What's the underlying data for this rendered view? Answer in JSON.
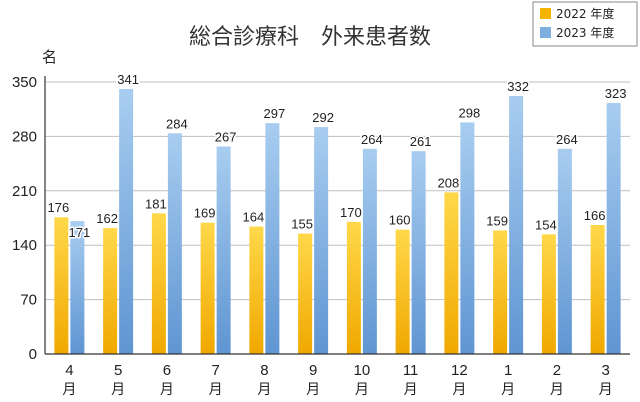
{
  "chart_data": {
    "type": "bar",
    "title": "総合診療科　外来患者数",
    "ylabel": "名",
    "ylim": [
      0,
      350
    ],
    "yticks": [
      0,
      70,
      140,
      210,
      280,
      350
    ],
    "grid": true,
    "legend_position": "top-right",
    "categories": [
      {
        "num": "4",
        "unit": "月"
      },
      {
        "num": "5",
        "unit": "月"
      },
      {
        "num": "6",
        "unit": "月"
      },
      {
        "num": "7",
        "unit": "月"
      },
      {
        "num": "8",
        "unit": "月"
      },
      {
        "num": "9",
        "unit": "月"
      },
      {
        "num": "10",
        "unit": "月"
      },
      {
        "num": "11",
        "unit": "月"
      },
      {
        "num": "12",
        "unit": "月"
      },
      {
        "num": "1",
        "unit": "月"
      },
      {
        "num": "2",
        "unit": "月"
      },
      {
        "num": "3",
        "unit": "月"
      }
    ],
    "series": [
      {
        "name": "2022 年度",
        "color": "#f5b400",
        "values": [
          176,
          162,
          181,
          169,
          164,
          155,
          170,
          160,
          208,
          159,
          154,
          166
        ]
      },
      {
        "name": "2023 年度",
        "color": "#7eaee0",
        "values": [
          171,
          341,
          284,
          267,
          297,
          292,
          264,
          261,
          298,
          332,
          264,
          323
        ]
      }
    ]
  }
}
